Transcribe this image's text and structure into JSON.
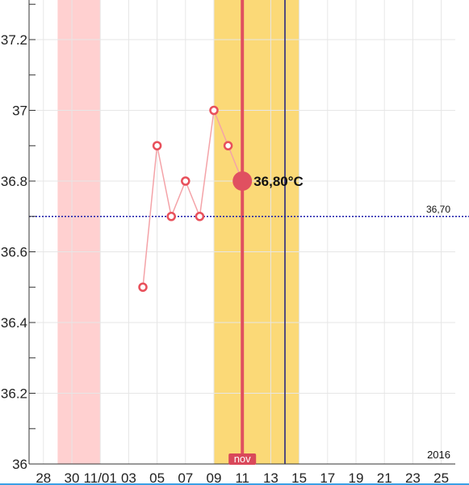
{
  "chart_data": {
    "type": "line",
    "x_dates": [
      "10/27",
      "10/28",
      "10/29",
      "10/30",
      "10/31",
      "11/01",
      "11/02",
      "11/03",
      "11/04",
      "11/05",
      "11/06",
      "11/07",
      "11/08",
      "11/09",
      "11/10",
      "11/11",
      "11/12",
      "11/13",
      "11/14",
      "11/15",
      "11/16",
      "11/17",
      "11/18",
      "11/19",
      "11/20",
      "11/21",
      "11/22",
      "11/23",
      "11/24",
      "11/25",
      "11/26"
    ],
    "x_tick_labels": [
      {
        "date": "10/28",
        "label": "28"
      },
      {
        "date": "10/30",
        "label": "30"
      },
      {
        "date": "11/01",
        "label": "11/01"
      },
      {
        "date": "11/03",
        "label": "03"
      },
      {
        "date": "11/05",
        "label": "05"
      },
      {
        "date": "11/07",
        "label": "07"
      },
      {
        "date": "11/09",
        "label": "09"
      },
      {
        "date": "11/11",
        "label": "11"
      },
      {
        "date": "11/13",
        "label": "13"
      },
      {
        "date": "11/15",
        "label": "15"
      },
      {
        "date": "11/17",
        "label": "17"
      },
      {
        "date": "11/19",
        "label": "19"
      },
      {
        "date": "11/21",
        "label": "21"
      },
      {
        "date": "11/23",
        "label": "23"
      },
      {
        "date": "11/25",
        "label": "25"
      }
    ],
    "year_label": "2016",
    "month_badge": "nov",
    "ylim": [
      36.0,
      37.3
    ],
    "y_tick_labels": [
      {
        "value": 36.0,
        "label": "36"
      },
      {
        "value": 36.2,
        "label": "36.2"
      },
      {
        "value": 36.4,
        "label": "36.4"
      },
      {
        "value": 36.6,
        "label": "36.6"
      },
      {
        "value": 36.8,
        "label": "36.8"
      },
      {
        "value": 37.0,
        "label": "37"
      },
      {
        "value": 37.2,
        "label": "37.2"
      }
    ],
    "series": [
      {
        "points": [
          {
            "date": "11/04",
            "y": 36.5
          },
          {
            "date": "11/05",
            "y": 36.9
          },
          {
            "date": "11/06",
            "y": 36.7
          },
          {
            "date": "11/07",
            "y": 36.8
          },
          {
            "date": "11/08",
            "y": 36.7
          },
          {
            "date": "11/09",
            "y": 37.0
          },
          {
            "date": "11/10",
            "y": 36.9
          },
          {
            "date": "11/11",
            "y": 36.8
          }
        ],
        "color": "#e8505b"
      }
    ],
    "selected_point": {
      "date": "11/11",
      "y": 36.8,
      "label": "36,80°C"
    },
    "coverline": {
      "y": 36.7,
      "label": "36,70",
      "color": "#1a1aaa"
    },
    "bands": [
      {
        "start": "10/29",
        "end": "11/01",
        "color": "#ffd0d0"
      },
      {
        "start": "11/09",
        "end": "11/15",
        "color": "#fbd977"
      }
    ],
    "today_line": {
      "date": "11/11",
      "color": "#e05060"
    },
    "marker_line": {
      "date": "11/14",
      "color": "#1a1a80"
    },
    "grid": true
  }
}
